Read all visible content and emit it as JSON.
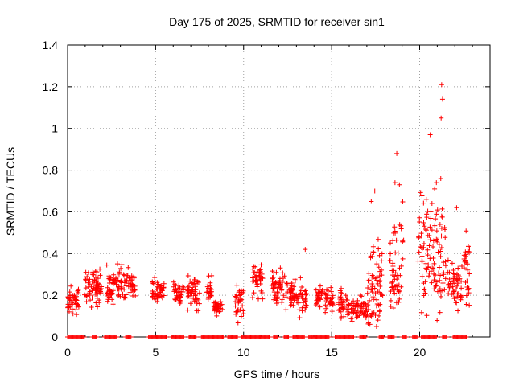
{
  "chart_data": {
    "type": "scatter",
    "title": "Day 175 of 2025, SRMTID for receiver sin1",
    "xlabel": "GPS time / hours",
    "ylabel": "SRMTID / TECUs",
    "xlim": [
      0,
      24
    ],
    "ylim": [
      0,
      1.4
    ],
    "x_ticks": [
      "0",
      "5",
      "10",
      "15",
      "20"
    ],
    "y_ticks": [
      "0",
      "0.2",
      "0.4",
      "0.6",
      "0.8",
      "1",
      "1.2",
      "1.4"
    ],
    "grid": true,
    "marker": "+",
    "color": "#ff0000",
    "segments": [
      {
        "x": [
          0.0,
          0.65
        ],
        "base": 0.17,
        "spread": 0.06
      },
      {
        "x": [
          0.95,
          1.95
        ],
        "base": 0.24,
        "spread": 0.09
      },
      {
        "x": [
          2.2,
          3.85
        ],
        "base": 0.25,
        "spread": 0.07
      },
      {
        "x": [
          4.8,
          5.5
        ],
        "base": 0.22,
        "spread": 0.06
      },
      {
        "x": [
          6.0,
          6.6
        ],
        "base": 0.21,
        "spread": 0.05
      },
      {
        "x": [
          6.8,
          7.5
        ],
        "base": 0.21,
        "spread": 0.08
      },
      {
        "x": [
          7.9,
          8.2
        ],
        "base": 0.24,
        "spread": 0.05
      },
      {
        "x": [
          8.3,
          8.8
        ],
        "base": 0.14,
        "spread": 0.03
      },
      {
        "x": [
          9.5,
          10.0
        ],
        "base": 0.17,
        "spread": 0.08
      },
      {
        "x": [
          10.5,
          11.1
        ],
        "base": 0.27,
        "spread": 0.08
      },
      {
        "x": [
          11.6,
          12.5
        ],
        "base": 0.24,
        "spread": 0.08
      },
      {
        "x": [
          12.6,
          13.6
        ],
        "base": 0.2,
        "spread": 0.08
      },
      {
        "x": [
          14.1,
          14.5
        ],
        "base": 0.19,
        "spread": 0.05
      },
      {
        "x": [
          14.6,
          15.1
        ],
        "base": 0.18,
        "spread": 0.05
      },
      {
        "x": [
          15.4,
          16.0
        ],
        "base": 0.16,
        "spread": 0.06
      },
      {
        "x": [
          16.1,
          17.0
        ],
        "base": 0.13,
        "spread": 0.06
      },
      {
        "x": [
          17.0,
          18.0
        ],
        "base": 0.25,
        "spread": 0.18
      },
      {
        "x": [
          18.3,
          19.1
        ],
        "base": 0.35,
        "spread": 0.22
      },
      {
        "x": [
          19.9,
          21.5
        ],
        "base": 0.4,
        "spread": 0.25
      },
      {
        "x": [
          21.6,
          22.4
        ],
        "base": 0.24,
        "spread": 0.1
      },
      {
        "x": [
          22.5,
          22.9
        ],
        "base": 0.3,
        "spread": 0.15
      }
    ],
    "notable_points": [
      {
        "x": 18.7,
        "y": 0.88
      },
      {
        "x": 20.6,
        "y": 0.97
      },
      {
        "x": 21.25,
        "y": 1.21
      },
      {
        "x": 21.3,
        "y": 1.14
      },
      {
        "x": 21.22,
        "y": 1.05
      },
      {
        "x": 21.2,
        "y": 0.76
      },
      {
        "x": 17.45,
        "y": 0.7
      },
      {
        "x": 17.25,
        "y": 0.65
      },
      {
        "x": 18.6,
        "y": 0.74
      },
      {
        "x": 18.85,
        "y": 0.73
      },
      {
        "x": 20.95,
        "y": 0.74
      },
      {
        "x": 20.85,
        "y": 0.71
      },
      {
        "x": 22.1,
        "y": 0.62
      },
      {
        "x": 13.5,
        "y": 0.42
      },
      {
        "x": 17.55,
        "y": 0.05
      },
      {
        "x": 20.7,
        "y": 0.64
      },
      {
        "x": 21.25,
        "y": 0.58
      }
    ],
    "zero_intervals": [
      [
        0.0,
        1.0
      ],
      [
        1.4,
        1.7
      ],
      [
        2.1,
        2.8
      ],
      [
        3.3,
        3.6
      ],
      [
        4.6,
        5.6
      ],
      [
        5.9,
        6.6
      ],
      [
        6.9,
        7.3
      ],
      [
        7.6,
        8.9
      ],
      [
        9.1,
        9.7
      ],
      [
        9.9,
        11.5
      ],
      [
        11.7,
        12.0
      ],
      [
        12.3,
        12.6
      ],
      [
        12.8,
        13.5
      ],
      [
        13.7,
        14.9
      ],
      [
        15.2,
        16.3
      ],
      [
        16.6,
        17.0
      ],
      [
        17.7,
        18.0
      ],
      [
        18.2,
        18.6
      ],
      [
        19.0,
        19.3
      ],
      [
        19.6,
        19.9
      ],
      [
        20.1,
        21.0
      ],
      [
        21.3,
        21.6
      ],
      [
        21.9,
        22.7
      ]
    ]
  }
}
